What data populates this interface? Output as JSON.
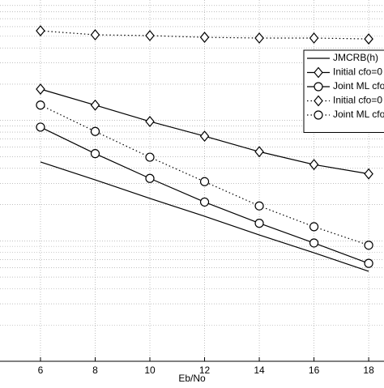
{
  "chart_data": {
    "type": "line",
    "xlabel": "Eb/No",
    "x": [
      6,
      8,
      10,
      12,
      14,
      16,
      18
    ],
    "xlim": [
      4.52,
      18.56
    ],
    "xticks": [
      6,
      8,
      10,
      12,
      14,
      16,
      18
    ],
    "ylim": [
      0.0001,
      0.1
    ],
    "ylog": true,
    "grid": true,
    "legend": "upper right",
    "series": [
      {
        "name": "JMCRB(h)",
        "color": "#000000",
        "style": "solid",
        "marker": "none",
        "values": [
          0.00452,
          0.00321,
          0.00225,
          0.0016,
          0.00112,
          0.000796,
          0.000559
        ]
      },
      {
        "name": "Initial cfo=0",
        "color": "#000000",
        "style": "solid",
        "marker": "diamond",
        "values": [
          0.0182,
          0.0134,
          0.0098,
          0.0074,
          0.0055,
          0.0043,
          0.0036
        ]
      },
      {
        "name": "Joint ML cfo",
        "color": "#000000",
        "style": "solid",
        "marker": "circle",
        "values": [
          0.0088,
          0.0053,
          0.0033,
          0.0021,
          0.0014,
          0.00096,
          0.00065
        ]
      },
      {
        "name": "Initial cfo=0",
        "color": "#000000",
        "style": "dotted",
        "marker": "diamond",
        "values": [
          0.0555,
          0.0514,
          0.0506,
          0.049,
          0.0483,
          0.0483,
          0.0475
        ]
      },
      {
        "name": "Joint ML cfo",
        "color": "#000000",
        "style": "dotted",
        "marker": "circle",
        "values": [
          0.0134,
          0.0081,
          0.00495,
          0.0031,
          0.00195,
          0.00131,
          0.00092
        ]
      }
    ]
  }
}
